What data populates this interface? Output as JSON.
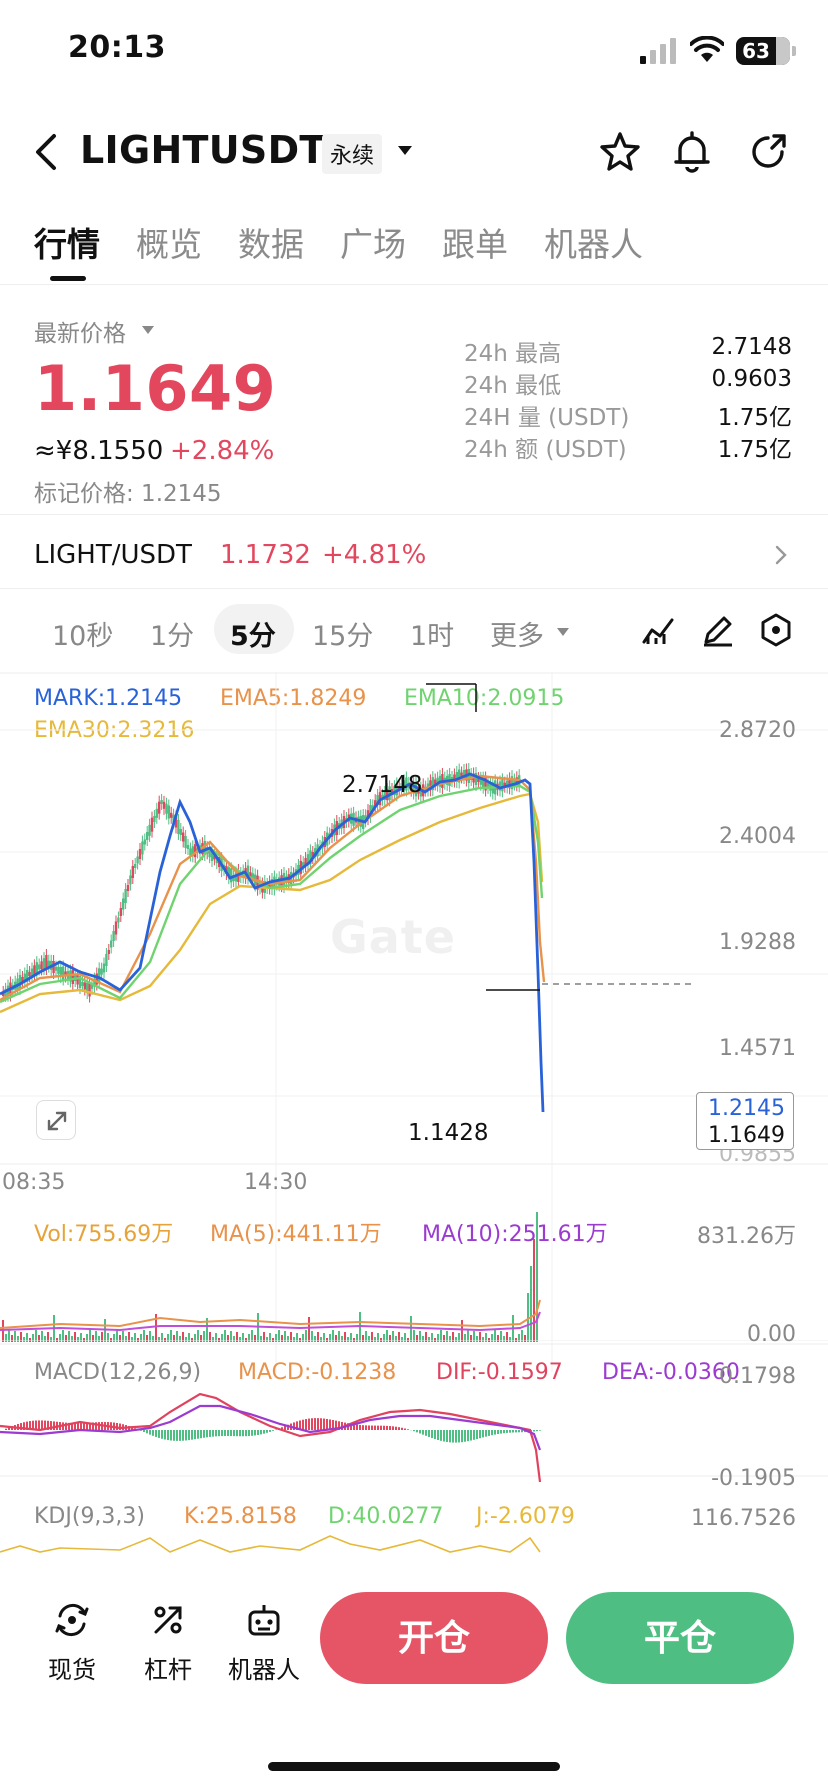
{
  "status": {
    "time": "20:13",
    "battery": "63"
  },
  "header": {
    "title": "LIGHTUSDT",
    "badge": "永续"
  },
  "tabs": [
    "行情",
    "概览",
    "数据",
    "广场",
    "跟单",
    "机器人"
  ],
  "price": {
    "latest_label": "最新价格",
    "last": "1.1649",
    "cny": "≈¥8.1550",
    "change": "+2.84%",
    "mark": "标记价格: 1.2145"
  },
  "stats": [
    {
      "label": "24h  最高",
      "value": "2.7148"
    },
    {
      "label": "24h  最低",
      "value": "0.9603"
    },
    {
      "label": "24H  量 (USDT)",
      "value": "1.75亿"
    },
    {
      "label": "24h  额 (USDT)",
      "value": "1.75亿"
    }
  ],
  "spot": {
    "pair": "LIGHT/USDT",
    "price": "1.1732",
    "change": "+4.81%"
  },
  "intervals": [
    "10秒",
    "1分",
    "5分",
    "15分",
    "1时",
    "更多"
  ],
  "legend": {
    "mark": "MARK:1.2145",
    "ema5": "EMA5:1.8249",
    "ema10": "EMA10:2.0915",
    "ema30": "EMA30:2.3216"
  },
  "price_axis": [
    "2.8720",
    "2.4004",
    "1.9288",
    "1.4571",
    "0.9855"
  ],
  "annot": {
    "high": "2.7148",
    "low": "1.1428",
    "tag_mark": "1.2145",
    "tag_last": "1.1649"
  },
  "times": [
    "08:35",
    "14:30"
  ],
  "vol": {
    "vol": "Vol:755.69万",
    "ma5": "MA(5):441.11万",
    "ma10": "MA(10):251.61万",
    "axis_top": "831.26万",
    "axis_bottom": "0.00"
  },
  "macd": {
    "title": "MACD(12,26,9)",
    "macd": "MACD:-0.1238",
    "dif": "DIF:-0.1597",
    "dea": "DEA:-0.0360",
    "axis_top": "0.1798",
    "axis_bottom": "-0.1905"
  },
  "kdj": {
    "title": "KDJ(9,3,3)",
    "k": "K:25.8158",
    "d": "D:40.0277",
    "j": "J:-2.6079",
    "axis_top": "116.7526"
  },
  "watermark": "Gate",
  "bottom_nav": [
    "现货",
    "杠杆",
    "机器人"
  ],
  "actions": {
    "open": "开仓",
    "close": "平仓"
  },
  "colors": {
    "up": "#4fbe82",
    "down": "#e2475e",
    "mark": "#2962d8",
    "ema5": "#e8924a",
    "ema10": "#6fd36f",
    "ema30": "#e6b93a",
    "macd_dif": "#e0435e",
    "macd_dea": "#9b3bd0"
  }
}
